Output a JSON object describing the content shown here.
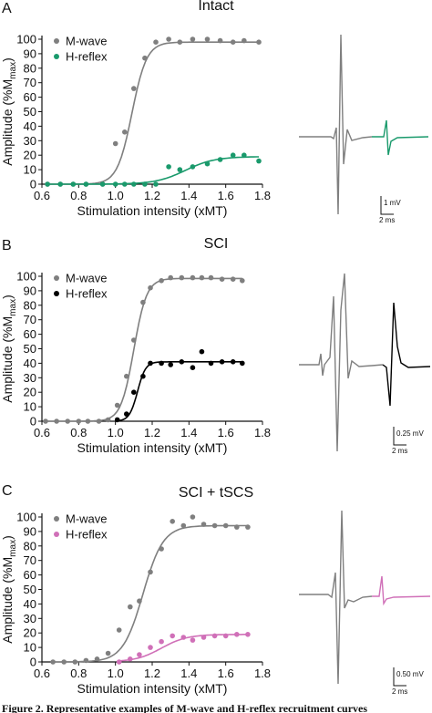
{
  "caption": "Figure 2. Representative examples of M-wave and H-reflex recruitment curves",
  "colors": {
    "mwave": "#7f7f7f",
    "intact_h": "#1a9a6c",
    "sci_h": "#000000",
    "tscs_h": "#d070b8",
    "axis": "#111111"
  },
  "axes": {
    "xlabel": "Stimulation intensity (xMT)",
    "ylabel_main": "Amplitude (%M",
    "ylabel_sub": "max",
    "ylabel_close": ")",
    "xticks": [
      "0.6",
      "0.8",
      "1.0",
      "1.2",
      "1.4",
      "1.6",
      "1.8"
    ],
    "yticks": [
      "0",
      "10",
      "20",
      "30",
      "40",
      "50",
      "60",
      "70",
      "80",
      "90",
      "100"
    ]
  },
  "chart_data": [
    {
      "type": "scatter",
      "panel_label": "A",
      "title": "Intact",
      "xlim": [
        0.6,
        1.8
      ],
      "ylim": [
        0,
        100
      ],
      "xlabel": "Stimulation intensity (xMT)",
      "ylabel": "Amplitude (%Mmax)",
      "legend_position": "top-left",
      "series": [
        {
          "name": "M-wave",
          "color": "#7f7f7f",
          "x": [
            0.63,
            0.7,
            0.77,
            0.84,
            0.93,
            1.0,
            1.05,
            1.1,
            1.16,
            1.22,
            1.29,
            1.35,
            1.42,
            1.5,
            1.57,
            1.64,
            1.7,
            1.78
          ],
          "y": [
            0,
            0,
            0,
            0,
            0,
            28,
            36,
            66,
            87,
            98,
            100,
            98,
            100,
            100,
            99,
            98,
            99,
            98
          ],
          "fit": {
            "model": "sigmoid",
            "max": 98,
            "x50": 1.09,
            "slope": 0.04
          }
        },
        {
          "name": "H-reflex",
          "color": "#1a9a6c",
          "x": [
            0.63,
            0.7,
            0.77,
            0.84,
            0.93,
            1.0,
            1.05,
            1.1,
            1.16,
            1.22,
            1.29,
            1.35,
            1.42,
            1.5,
            1.57,
            1.64,
            1.7,
            1.78
          ],
          "y": [
            0,
            0,
            0,
            0,
            0,
            0,
            0,
            0,
            0,
            0,
            12,
            10,
            12,
            14,
            17,
            20,
            20,
            16
          ],
          "fit": {
            "model": "sigmoid",
            "max": 19,
            "x50": 1.38,
            "slope": 0.08
          }
        }
      ],
      "trace_scale": {
        "amplitude": "1 mV",
        "time": "2 ms"
      }
    },
    {
      "type": "scatter",
      "panel_label": "B",
      "title": "SCI",
      "xlim": [
        0.6,
        1.8
      ],
      "ylim": [
        0,
        100
      ],
      "xlabel": "Stimulation intensity (xMT)",
      "ylabel": "Amplitude (%Mmax)",
      "legend_position": "top-left",
      "series": [
        {
          "name": "M-wave",
          "color": "#7f7f7f",
          "x": [
            0.62,
            0.68,
            0.74,
            0.8,
            0.85,
            0.91,
            0.96,
            1.01,
            1.06,
            1.1,
            1.15,
            1.19,
            1.25,
            1.3,
            1.36,
            1.42,
            1.47,
            1.52,
            1.58,
            1.64,
            1.69
          ],
          "y": [
            0,
            0,
            0,
            0,
            0,
            0,
            1,
            11,
            31,
            56,
            82,
            92,
            97,
            99,
            99,
            99,
            99,
            99,
            98,
            98,
            97
          ],
          "fit": {
            "model": "sigmoid",
            "max": 98.5,
            "x50": 1.1,
            "slope": 0.035
          }
        },
        {
          "name": "H-reflex",
          "color": "#000000",
          "x": [
            1.01,
            1.06,
            1.1,
            1.15,
            1.19,
            1.25,
            1.3,
            1.36,
            1.42,
            1.47,
            1.52,
            1.58,
            1.64,
            1.69
          ],
          "y": [
            1,
            5,
            20,
            31,
            40,
            40,
            39,
            41,
            37,
            48,
            40,
            41,
            41,
            40
          ],
          "fit": {
            "model": "sigmoid",
            "max": 41,
            "x50": 1.12,
            "slope": 0.022
          }
        }
      ],
      "trace_scale": {
        "amplitude": "0.25 mV",
        "time": "2 ms"
      }
    },
    {
      "type": "scatter",
      "panel_label": "C",
      "title": "SCI + tSCS",
      "xlim": [
        0.6,
        1.8
      ],
      "ylim": [
        0,
        100
      ],
      "xlabel": "Stimulation intensity (xMT)",
      "ylabel": "Amplitude (%Mmax)",
      "legend_position": "top-left",
      "series": [
        {
          "name": "M-wave",
          "color": "#7f7f7f",
          "x": [
            0.66,
            0.72,
            0.78,
            0.84,
            0.9,
            0.96,
            1.02,
            1.08,
            1.13,
            1.19,
            1.25,
            1.31,
            1.37,
            1.42,
            1.48,
            1.54,
            1.6,
            1.66,
            1.72
          ],
          "y": [
            0,
            0,
            0,
            1,
            2,
            6,
            22,
            38,
            42,
            62,
            78,
            97,
            94,
            100,
            95,
            94,
            94,
            93,
            93
          ],
          "fit": {
            "model": "sigmoid",
            "max": 94,
            "x50": 1.15,
            "slope": 0.055
          }
        },
        {
          "name": "H-reflex",
          "color": "#d070b8",
          "x": [
            1.02,
            1.08,
            1.13,
            1.19,
            1.25,
            1.31,
            1.37,
            1.42,
            1.48,
            1.54,
            1.6,
            1.66,
            1.72
          ],
          "y": [
            0,
            2,
            5,
            10,
            14,
            18,
            17,
            15,
            17,
            18,
            18,
            19,
            19
          ],
          "fit": {
            "model": "sigmoid",
            "max": 19,
            "x50": 1.25,
            "slope": 0.07
          }
        }
      ],
      "trace_scale": {
        "amplitude": "0.50 mV",
        "time": "2 ms"
      }
    }
  ]
}
